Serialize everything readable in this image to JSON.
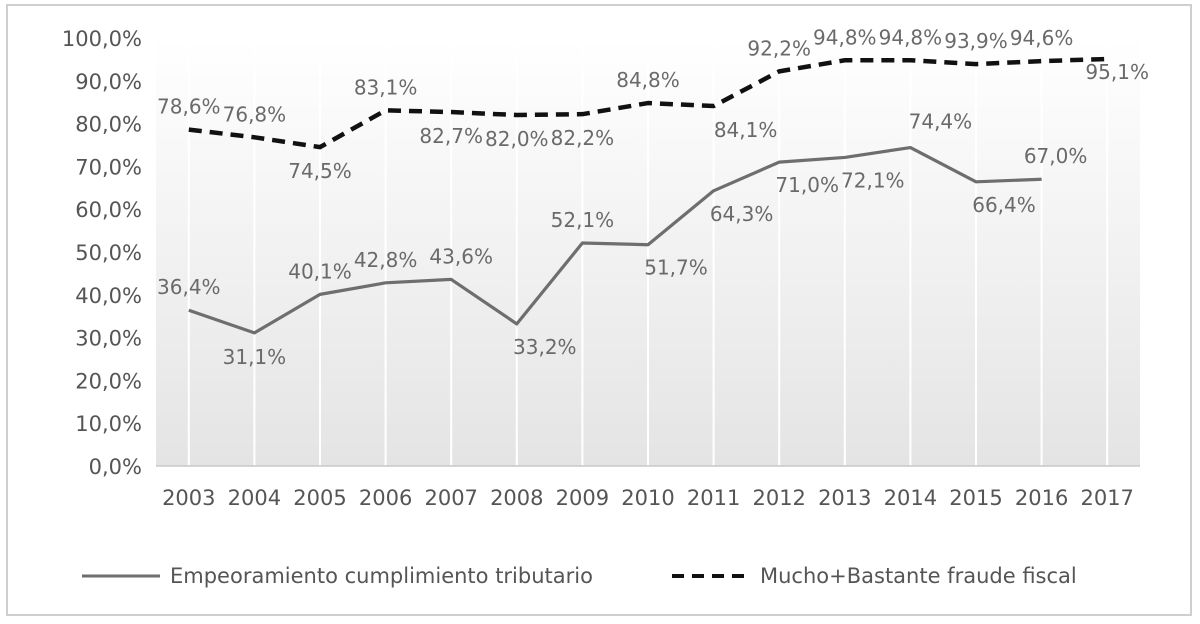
{
  "chart_data": {
    "type": "line",
    "title": "",
    "xlabel": "",
    "ylabel": "",
    "x": [
      "2003",
      "2004",
      "2005",
      "2006",
      "2007",
      "2008",
      "2009",
      "2010",
      "2011",
      "2012",
      "2013",
      "2014",
      "2015",
      "2016",
      "2017"
    ],
    "ylim": [
      0,
      100
    ],
    "y_ticks": [
      "0,0%",
      "10,0%",
      "20,0%",
      "30,0%",
      "40,0%",
      "50,0%",
      "60,0%",
      "70,0%",
      "80,0%",
      "90,0%",
      "100,0%"
    ],
    "grid": "vertical",
    "legend_position": "bottom",
    "series": [
      {
        "name": "Empeoramiento cumplimiento tributario",
        "style": "solid",
        "color": "#6e6e6e",
        "values": [
          36.4,
          31.1,
          40.1,
          42.8,
          43.6,
          33.2,
          52.1,
          51.7,
          64.3,
          71.0,
          72.1,
          74.4,
          66.4,
          67.0,
          null
        ],
        "labels": [
          "36,4%",
          "31,1%",
          "40,1%",
          "42,8%",
          "43,6%",
          "33,2%",
          "52,1%",
          "51,7%",
          "64,3%",
          "71,0%",
          "72,1%",
          "74,4%",
          "66,4%",
          "67,0%",
          ""
        ]
      },
      {
        "name": "Mucho+Bastante fraude fiscal",
        "style": "dashed",
        "color": "#111111",
        "values": [
          78.6,
          76.8,
          74.5,
          83.1,
          82.7,
          82.0,
          82.2,
          84.8,
          84.1,
          92.2,
          94.8,
          94.8,
          93.9,
          94.6,
          95.1
        ],
        "labels": [
          "78,6%",
          "76,8%",
          "74,5%",
          "83,1%",
          "82,7%",
          "82,0%",
          "82,2%",
          "84,8%",
          "84,1%",
          "92,2%",
          "94,8%",
          "94,8%",
          "93,9%",
          "94,6%",
          "95,1%"
        ]
      }
    ]
  }
}
